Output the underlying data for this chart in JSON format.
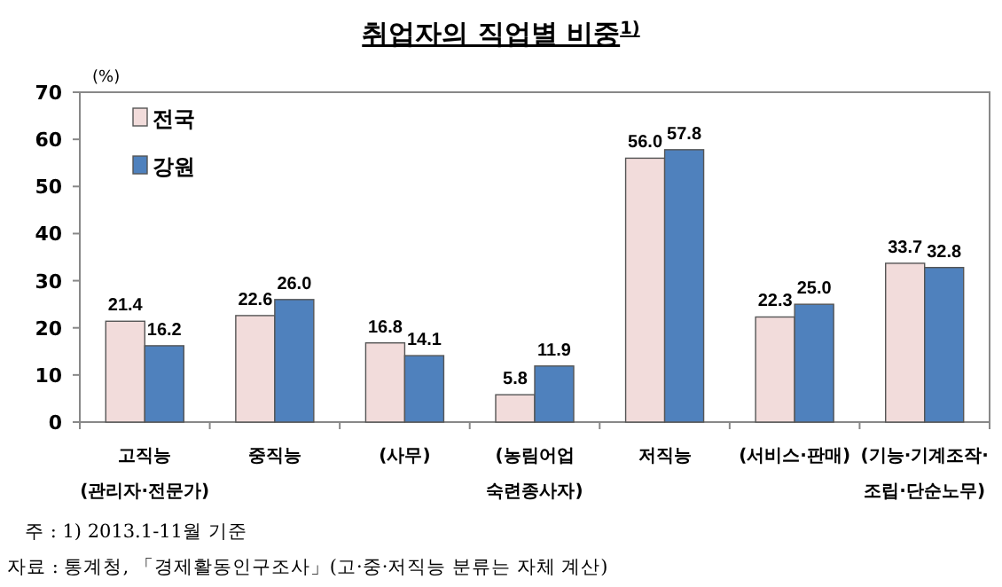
{
  "chart_data": {
    "type": "bar",
    "title": "취업자의 직업별 비중$^{1)}$",
    "ylabel": "(%)",
    "categories": [
      "고직능\n(관리자·전문가)",
      "중직능",
      "(사무)",
      "(농림어업\n숙련종사자)",
      "저직능",
      "(서비스·판매)",
      "(기능·기계조작·\n조립·단순노무)"
    ],
    "series": [
      {
        "name": "전국",
        "color": "#f2dcdb",
        "values": [
          21.4,
          22.6,
          16.8,
          5.8,
          56.0,
          22.3,
          33.7
        ],
        "value_labels": [
          "21.4",
          "22.6",
          "16.8",
          "5.8",
          "56.0",
          "22.3",
          "33.7"
        ]
      },
      {
        "name": "강원",
        "color": "#4f81bd",
        "values": [
          16.2,
          26.0,
          14.1,
          11.9,
          57.8,
          25.0,
          32.8
        ],
        "value_labels": [
          "16.2",
          "26.0",
          "14.1",
          "11.9",
          "57.8",
          "25.0",
          "32.8"
        ]
      }
    ],
    "ylim": [
      0,
      70
    ],
    "yticks": [
      0,
      10,
      20,
      30,
      40,
      50,
      60,
      70
    ],
    "legend": "top left",
    "grid": false,
    "annotations": [
      "주 : 1) 2013.1-11월 기준",
      "자료 : 통계청, 「경제활동인구조사」(고·중·저직능 분류는 자체 계산)"
    ]
  }
}
